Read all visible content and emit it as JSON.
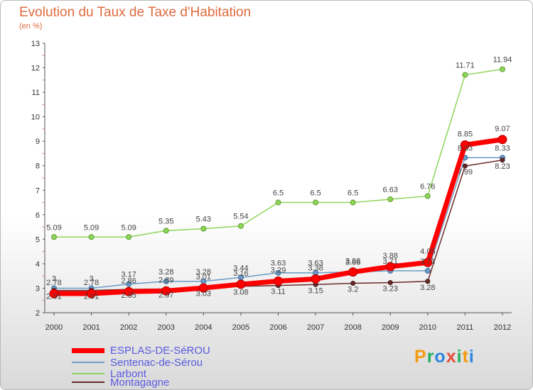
{
  "title": "Evolution du Taux de Taxe d'Habitation",
  "subtitle": "(en %)",
  "logo": {
    "text": "Proxiti",
    "letters": [
      "P",
      "r",
      "o",
      "x",
      "i",
      "t",
      "i"
    ],
    "colors": [
      "#f39c12",
      "#27ae60",
      "#2e86de",
      "#e74c3c",
      "#27ae60",
      "#f39c12",
      "#2e86de"
    ]
  },
  "chart_data": {
    "type": "line",
    "title": "Evolution du Taux de Taxe d'Habitation",
    "ylabel": "(en %)",
    "xlabel": "",
    "categories": [
      "2000",
      "2001",
      "2002",
      "2003",
      "2004",
      "2005",
      "2006",
      "2007",
      "2008",
      "2009",
      "2010",
      "2011",
      "2012"
    ],
    "ylim": [
      2,
      13
    ],
    "yticks": [
      "2",
      "3",
      "4",
      "5",
      "6",
      "7",
      "8",
      "9",
      "10",
      "11",
      "12",
      "13"
    ],
    "grid": false,
    "legend_position": "bottom-left",
    "series": [
      {
        "name": "ESPLAS-DE-SéROU",
        "color": "#ff0000",
        "labels": [
          "2.78",
          "2.78",
          "2.86",
          "2.89",
          "3.01",
          "3.16",
          "3.29",
          "3.38",
          "3.66",
          "3.88",
          "4.05",
          "8.85",
          "9.07"
        ],
        "values": [
          2.78,
          2.78,
          2.86,
          2.89,
          3.01,
          3.16,
          3.29,
          3.38,
          3.66,
          3.88,
          4.05,
          8.85,
          9.07
        ]
      },
      {
        "name": "Sentenac-de-Sérou",
        "color": "#6b9bc7",
        "labels": [
          "3",
          "3",
          "3.17",
          "3.28",
          "3.28",
          "3.44",
          "3.63",
          "3.63",
          "3.66",
          "3.71",
          "3.71",
          "8.33",
          "8.33"
        ],
        "values": [
          3.0,
          3.0,
          3.17,
          3.28,
          3.28,
          3.44,
          3.63,
          3.63,
          3.66,
          3.71,
          3.71,
          8.33,
          8.33
        ]
      },
      {
        "name": "Larbont",
        "color": "#8ed65a",
        "labels": [
          "5.09",
          "5.09",
          "5.09",
          "5.35",
          "5.43",
          "5.54",
          "6.5",
          "6.5",
          "6.5",
          "6.63",
          "6.76",
          "11.71",
          "11.94"
        ],
        "values": [
          5.09,
          5.09,
          5.09,
          5.35,
          5.43,
          5.54,
          6.5,
          6.5,
          6.5,
          6.63,
          6.76,
          11.71,
          11.94
        ]
      },
      {
        "name": "Montagagne",
        "color": "#6b2a2a",
        "labels": [
          "2.91",
          "2.91",
          "2.95",
          "2.97",
          "3.03",
          "3.08",
          "3.11",
          "3.15",
          "3.2",
          "3.23",
          "3.28",
          "7.99",
          "8.23"
        ],
        "values": [
          2.91,
          2.91,
          2.95,
          2.97,
          3.03,
          3.08,
          3.11,
          3.15,
          3.2,
          3.23,
          3.28,
          7.99,
          8.23
        ]
      }
    ]
  }
}
